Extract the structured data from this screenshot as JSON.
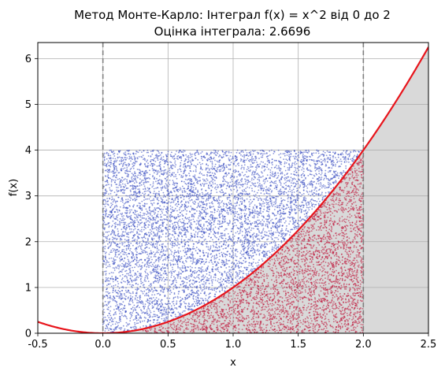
{
  "chart_data": {
    "type": "scatter",
    "title": "Метод Монте-Карло: Інтеграл f(x) = x^2 від 0 до 2",
    "subtitle": "Оцінка інтеграла: 2.6696",
    "xlabel": "x",
    "ylabel": "f(x)",
    "xlim": [
      -0.5,
      2.5
    ],
    "ylim": [
      0,
      6.35
    ],
    "x_ticks": [
      "-0.5",
      "0.0",
      "0.5",
      "1.0",
      "1.5",
      "2.0",
      "2.5"
    ],
    "y_ticks": [
      "0",
      "1",
      "2",
      "3",
      "4",
      "5",
      "6"
    ],
    "grid": true,
    "function": "x^2",
    "integration_bounds": [
      0,
      2
    ],
    "sampling_box": {
      "x": [
        0,
        2
      ],
      "y": [
        0,
        4
      ]
    },
    "sample_points_approx": 10000,
    "series": [
      {
        "role": "points_above_curve",
        "color": "#3a4ec2"
      },
      {
        "role": "points_below_curve",
        "color": "#c0163a"
      },
      {
        "role": "curve_f(x)",
        "color": "#e8141b"
      },
      {
        "role": "area_under_curve",
        "color": "#d9d9d9"
      }
    ]
  }
}
